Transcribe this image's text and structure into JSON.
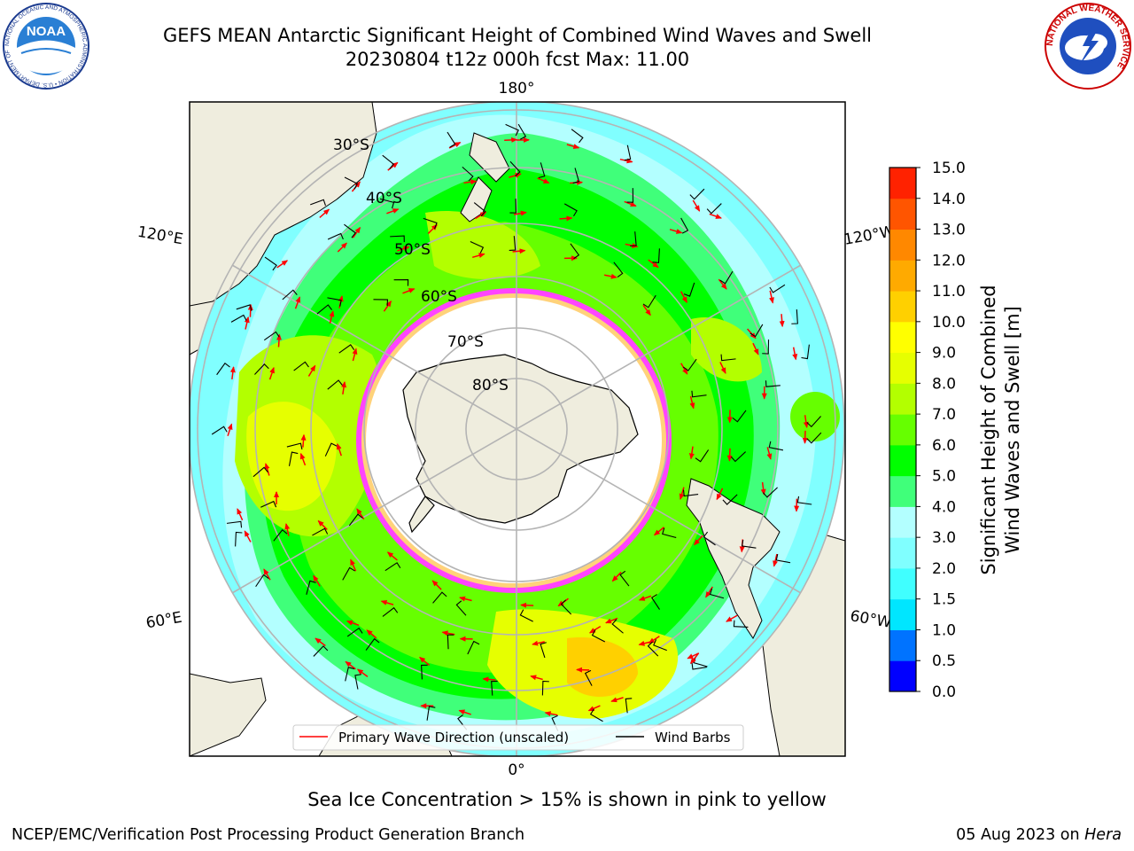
{
  "header": {
    "title_line1": "GEFS MEAN Antarctic Significant Height of Combined Wind Waves and Swell",
    "title_line2": "20230804 t12z 000h fcst   Max: 11.00"
  },
  "logos": {
    "left": {
      "name": "noaa-logo",
      "text": "NOAA",
      "ring_text": "NATIONAL OCEANIC AND ATMOSPHERIC ADMINISTRATION • U.S. DEPARTMENT OF COMMERCE"
    },
    "right": {
      "name": "nws-logo",
      "ring_text": "NATIONAL WEATHER SERVICE"
    }
  },
  "map": {
    "projection": "south-polar-stereographic",
    "longitude_labels": {
      "top": "180°",
      "bottom": "0°",
      "upper_left": "120°E",
      "upper_right": "120°W",
      "lower_left": "60°E",
      "lower_right": "60°W"
    },
    "latitude_labels": [
      "30°S",
      "40°S",
      "50°S",
      "60°S",
      "70°S",
      "80°S"
    ],
    "legend": {
      "wave_direction": "Primary Wave Direction (unscaled)",
      "wind_barbs": "Wind Barbs"
    },
    "colors": {
      "land": "#efedde",
      "ice_edge": "#ff44ff",
      "wave_arrow": "#ff0000",
      "barb": "#000000",
      "grid": "#b4b4b4"
    }
  },
  "colorbar": {
    "label_line1": "Significant Height of Combined",
    "label_line2": "Wind Waves and Swell [m]",
    "ticks": [
      "0.0",
      "0.5",
      "1.0",
      "1.5",
      "2.0",
      "3.0",
      "4.0",
      "5.0",
      "6.0",
      "7.0",
      "8.0",
      "9.0",
      "10.0",
      "11.0",
      "12.0",
      "13.0",
      "14.0",
      "15.0"
    ],
    "colors": [
      "#0000ff",
      "#0073ff",
      "#00e6ff",
      "#40ffff",
      "#80ffff",
      "#b3ffff",
      "#40ff7a",
      "#00ff00",
      "#66ff00",
      "#b3ff00",
      "#e6ff00",
      "#ffff00",
      "#ffd000",
      "#ffaa00",
      "#ff8800",
      "#ff5500",
      "#ff2200"
    ]
  },
  "notes": {
    "sea_ice": "Sea Ice Concentration > 15% is shown in pink to yellow"
  },
  "footer": {
    "left": "NCEP/EMC/Verification Post Processing Product Generation Branch",
    "date": "05 Aug 2023 on ",
    "machine": "Hera"
  }
}
